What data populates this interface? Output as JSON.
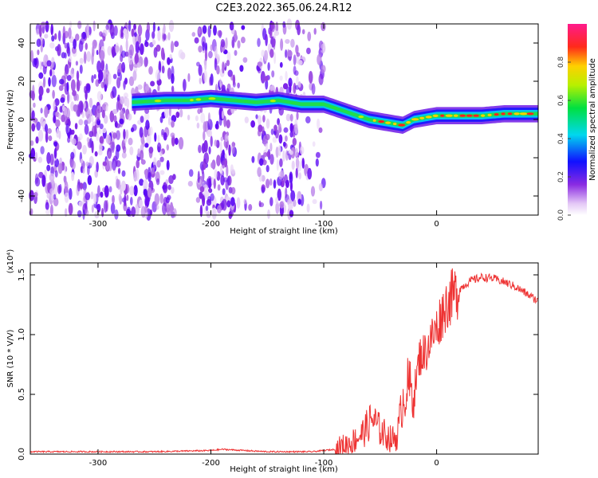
{
  "title": "C2E3.2022.365.06.24.R12",
  "chart_data": [
    {
      "type": "heatmap",
      "xlabel": "Height of straight line (km)",
      "ylabel": "Frequency (Hz)",
      "xlim": [
        -360,
        90
      ],
      "ylim": [
        -50,
        50
      ],
      "xticks": [
        -300,
        -200,
        -100,
        0
      ],
      "yticks": [
        -40,
        -20,
        0,
        20,
        40
      ],
      "colorbar": {
        "label": "Normalized spectral amplitude",
        "range": [
          0.0,
          1.0
        ],
        "ticks": [
          "0.0",
          "0.2",
          "0.4",
          "0.6",
          "0.8"
        ],
        "colormap": "rainbow (white, violet, blue, cyan, green, yellow, red, magenta)"
      },
      "ridge": {
        "x": [
          -270,
          -240,
          -220,
          -200,
          -180,
          -160,
          -140,
          -120,
          -100,
          -80,
          -60,
          -40,
          -30,
          -20,
          0,
          20,
          40,
          60,
          80,
          90
        ],
        "y": [
          9,
          10,
          10,
          11,
          10,
          9,
          10,
          8,
          8,
          4,
          0,
          -2,
          -3,
          0,
          2,
          2,
          2,
          3,
          3,
          3
        ]
      },
      "noise_region_x": [
        -360,
        -100
      ]
    },
    {
      "type": "line",
      "xlabel": "Height of straight line (km)",
      "ylabel": "SNR (10 * V/V)",
      "multiplier_label": "(x10⁴)",
      "xlim": [
        -360,
        90
      ],
      "ylim": [
        0,
        1.6
      ],
      "xticks": [
        -300,
        -200,
        -100,
        0
      ],
      "yticks": [
        "0.0",
        "0.5",
        "1.0",
        "1.5"
      ],
      "color": "#ee3333",
      "series": [
        {
          "x": [
            -360,
            -300,
            -250,
            -200,
            -190,
            -150,
            -110,
            -90,
            -75,
            -65,
            -57,
            -50,
            -40,
            -35,
            -30,
            -25,
            -20,
            -15,
            -10,
            -5,
            0,
            5,
            10,
            20,
            30,
            40,
            50,
            60,
            70,
            80,
            90
          ],
          "y": [
            0.02,
            0.02,
            0.02,
            0.03,
            0.04,
            0.02,
            0.02,
            0.04,
            0.1,
            0.18,
            0.3,
            0.2,
            0.12,
            0.15,
            0.45,
            0.58,
            0.5,
            0.82,
            0.85,
            0.96,
            1.05,
            1.18,
            1.28,
            1.38,
            1.45,
            1.48,
            1.47,
            1.44,
            1.4,
            1.34,
            1.28
          ]
        }
      ]
    }
  ]
}
